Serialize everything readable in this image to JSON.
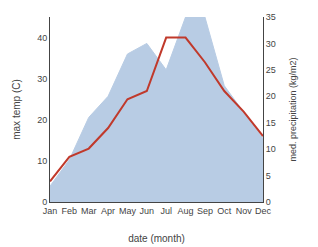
{
  "chart_data": {
    "type": "line",
    "categories": [
      "Jan",
      "Feb",
      "Mar",
      "Apr",
      "May",
      "Jun",
      "Jul",
      "Aug",
      "Sep",
      "Oct",
      "Nov",
      "Dec"
    ],
    "xlabel": "date (month)",
    "ylabel": "max temp (C)",
    "y2label": "med. precipitation (kg/m2)",
    "series": [
      {
        "type": "line",
        "color": "#c0392b",
        "values": [
          5,
          11,
          13,
          18,
          25,
          27,
          40,
          40,
          34,
          27,
          22,
          16
        ]
      },
      {
        "type": "area",
        "color": "#b8cce4",
        "axis": "y2",
        "values": [
          3,
          8,
          16,
          20,
          28,
          30,
          25,
          35,
          35,
          22,
          17,
          12
        ]
      }
    ],
    "ylim": [
      0,
      45
    ],
    "yticks": [
      0,
      10,
      20,
      30,
      40
    ],
    "y2lim": [
      0,
      35
    ],
    "y2ticks": [
      0,
      5,
      10,
      15,
      20,
      25,
      30,
      35
    ],
    "grid": false
  }
}
